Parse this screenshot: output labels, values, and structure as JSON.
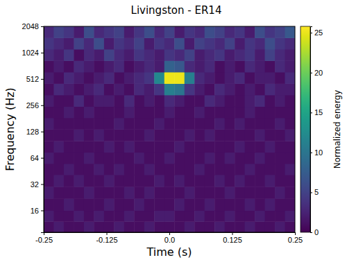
{
  "chart_data": {
    "type": "heatmap",
    "title": "Livingston - ER14",
    "x_label": "Time (s)",
    "y_label": "Frequency (Hz)",
    "colorbar_label": "Normalized energy",
    "color": "viridis",
    "log": "y",
    "xlim": [
      -0.25,
      0.25
    ],
    "xticks": [
      -0.25,
      -0.125,
      {
        "value": 0,
        "label": "0.0"
      },
      0.125,
      0.25
    ],
    "ylim": [
      9,
      2048
    ],
    "yticks": [
      16,
      32,
      64,
      128,
      256,
      512,
      1024,
      2048
    ],
    "colorbar_range": [
      0,
      25.8
    ],
    "colorbar_ticks": [
      0,
      5,
      10,
      15,
      20,
      25
    ],
    "x_bins": [
      -0.25,
      -0.23,
      -0.21,
      -0.19,
      -0.17,
      -0.15,
      -0.13,
      -0.11,
      -0.09,
      -0.07,
      -0.05,
      -0.03,
      -0.01,
      0.01,
      0.03,
      0.05,
      0.07,
      0.09,
      0.11,
      0.13,
      0.15,
      0.17,
      0.19,
      0.21,
      0.23,
      0.25
    ],
    "y_bins": [
      9,
      12,
      16,
      22,
      30,
      41,
      55,
      74,
      100,
      136,
      184,
      248,
      336,
      454,
      614,
      830,
      1122,
      1517,
      2048
    ],
    "z": [
      [
        1,
        2,
        1,
        1,
        2,
        1,
        1,
        2,
        1,
        1,
        2,
        1,
        1,
        1,
        2,
        1,
        1,
        2,
        1,
        1,
        2,
        1,
        1,
        2,
        1
      ],
      [
        2,
        1,
        1,
        2,
        1,
        2,
        1,
        1,
        2,
        1,
        1,
        2,
        2,
        1,
        1,
        2,
        1,
        1,
        2,
        1,
        1,
        2,
        1,
        1,
        2
      ],
      [
        1,
        1,
        2,
        1,
        1,
        1,
        2,
        1,
        1,
        2,
        1,
        1,
        1,
        2,
        1,
        1,
        2,
        1,
        1,
        1,
        2,
        1,
        2,
        1,
        1
      ],
      [
        2,
        1,
        1,
        1,
        2,
        1,
        1,
        1,
        2,
        1,
        2,
        1,
        1,
        1,
        2,
        1,
        1,
        1,
        2,
        1,
        1,
        1,
        1,
        2,
        1
      ],
      [
        1,
        2,
        1,
        2,
        1,
        1,
        2,
        1,
        1,
        1,
        1,
        2,
        1,
        2,
        1,
        1,
        1,
        2,
        1,
        2,
        1,
        1,
        2,
        1,
        1
      ],
      [
        1,
        1,
        2,
        1,
        1,
        2,
        1,
        2,
        1,
        1,
        2,
        1,
        1,
        1,
        1,
        2,
        1,
        1,
        1,
        1,
        2,
        1,
        1,
        1,
        2
      ],
      [
        2,
        1,
        1,
        1,
        2,
        1,
        1,
        1,
        1,
        2,
        1,
        1,
        2,
        1,
        1,
        1,
        2,
        1,
        2,
        1,
        1,
        2,
        1,
        1,
        1
      ],
      [
        1,
        2,
        1,
        1,
        1,
        1,
        2,
        1,
        2,
        1,
        1,
        1,
        1,
        2,
        1,
        1,
        1,
        1,
        1,
        2,
        1,
        1,
        2,
        1,
        1
      ],
      [
        1,
        1,
        1,
        2,
        1,
        2,
        1,
        1,
        1,
        1,
        2,
        1,
        1,
        1,
        2,
        1,
        2,
        1,
        1,
        1,
        1,
        2,
        1,
        1,
        2
      ],
      [
        2,
        1,
        1,
        1,
        1,
        1,
        1,
        2,
        1,
        1,
        1,
        2,
        1,
        1,
        1,
        1,
        1,
        2,
        1,
        2,
        1,
        1,
        1,
        2,
        1
      ],
      [
        1,
        1,
        2,
        1,
        2,
        1,
        1,
        1,
        2,
        1,
        1,
        1,
        2,
        1,
        1,
        2,
        1,
        1,
        1,
        1,
        2,
        1,
        1,
        1,
        1
      ],
      [
        2,
        1,
        1,
        3,
        1,
        2,
        2,
        1,
        3,
        1,
        2,
        1,
        3,
        2,
        1,
        1,
        3,
        2,
        1,
        1,
        2,
        3,
        1,
        2,
        1
      ],
      [
        1,
        3,
        2,
        1,
        2,
        3,
        1,
        2,
        1,
        3,
        2,
        4,
        11,
        10,
        4,
        2,
        1,
        3,
        2,
        1,
        2,
        1,
        3,
        2,
        2
      ],
      [
        2,
        1,
        3,
        2,
        1,
        2,
        3,
        1,
        2,
        3,
        4,
        12,
        25,
        25,
        11,
        3,
        2,
        1,
        2,
        3,
        1,
        2,
        2,
        1,
        3
      ],
      [
        1,
        2,
        1,
        3,
        2,
        1,
        2,
        3,
        1,
        2,
        3,
        2,
        8,
        7,
        3,
        2,
        3,
        1,
        2,
        1,
        3,
        2,
        1,
        3,
        2
      ],
      [
        3,
        2,
        4,
        1,
        3,
        2,
        5,
        3,
        2,
        4,
        3,
        2,
        4,
        3,
        5,
        2,
        3,
        4,
        2,
        3,
        4,
        2,
        5,
        3,
        2
      ],
      [
        4,
        3,
        2,
        5,
        3,
        6,
        2,
        4,
        3,
        5,
        2,
        4,
        3,
        6,
        2,
        5,
        4,
        3,
        5,
        2,
        4,
        3,
        6,
        4,
        3
      ],
      [
        3,
        5,
        4,
        2,
        6,
        3,
        4,
        5,
        2,
        4,
        6,
        3,
        5,
        2,
        4,
        3,
        6,
        5,
        3,
        4,
        2,
        6,
        4,
        5,
        7
      ]
    ]
  }
}
